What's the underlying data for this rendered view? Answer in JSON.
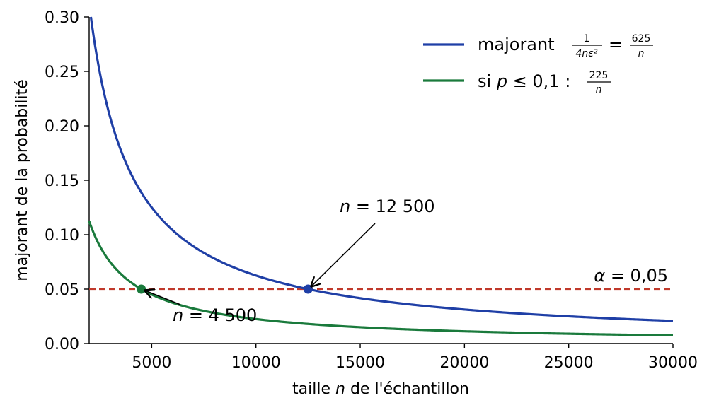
{
  "chart_data": {
    "type": "line",
    "xlabel": {
      "pre": "taille ",
      "var": "n",
      "post": " de l'échantillon"
    },
    "ylabel": "majorant de la probabilité",
    "xlim": [
      2000,
      30000
    ],
    "ylim": [
      0,
      0.3
    ],
    "xticks": [
      5000,
      10000,
      15000,
      20000,
      25000,
      30000
    ],
    "xtick_labels": [
      "5000",
      "10000",
      "15000",
      "20000",
      "25000",
      "30000"
    ],
    "yticks": [
      0.0,
      0.05,
      0.1,
      0.15,
      0.2,
      0.25,
      0.3
    ],
    "ytick_labels": [
      "0.00",
      "0.05",
      "0.10",
      "0.15",
      "0.20",
      "0.25",
      "0.30"
    ],
    "series": [
      {
        "name": "majorant 1/(4nε²) = 625/n",
        "numerator": 625,
        "color": "#1f3fa6"
      },
      {
        "name": "si p ≤ 0,1 : 225/n",
        "numerator": 225,
        "color": "#1a7a3c"
      }
    ],
    "threshold": {
      "value": 0.05,
      "label": "α = 0,05",
      "color": "#c0392b"
    },
    "points": [
      {
        "x": 12500,
        "y": 0.05,
        "label": "n = 12 500",
        "color": "#1f3fa6"
      },
      {
        "x": 4500,
        "y": 0.05,
        "label": "n = 4 500",
        "color": "#1a7a3c"
      }
    ],
    "legend": {
      "position": "top-right",
      "entry1": {
        "text": "majorant",
        "frac1_num": "1",
        "frac1_den": "4nε²",
        "eq": "=",
        "frac2_num": "625",
        "frac2_den": "n"
      },
      "entry2": {
        "pre": "si ",
        "var": "p",
        "rel": " ≤ 0,1 : ",
        "frac_num": "225",
        "frac_den": "n"
      }
    },
    "ann_high": {
      "var": "n",
      "rest": " = 12 500"
    },
    "ann_low": {
      "var": "n",
      "rest": " = 4 500"
    },
    "alpha_label": {
      "var": "α",
      "rest": " = 0,05"
    },
    "grid": false
  }
}
